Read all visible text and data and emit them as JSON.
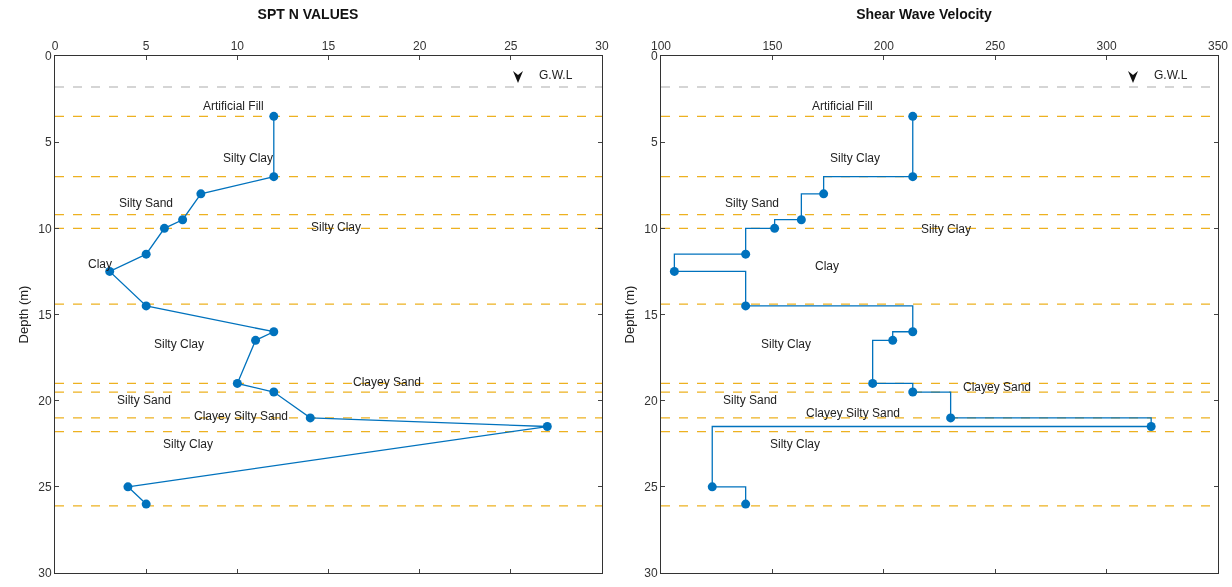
{
  "chart_data": [
    {
      "type": "line",
      "title": "SPT N VALUES",
      "ylabel": "Depth (m)",
      "xlim": [
        0,
        30
      ],
      "xticks": [
        0,
        5,
        10,
        15,
        20,
        25,
        30
      ],
      "ylim": [
        30,
        0
      ],
      "yticks": [
        0,
        5,
        10,
        15,
        20,
        25,
        30
      ],
      "grid": false,
      "marker": "circle",
      "line_style": "solid",
      "series": [
        {
          "color": "#0072bd",
          "x": [
            12,
            12,
            8,
            7,
            6,
            5,
            3,
            5,
            12,
            11,
            10,
            12,
            14,
            27,
            4,
            5
          ],
          "values": [
            3.5,
            7,
            8,
            9.5,
            10,
            11.5,
            12.5,
            14.5,
            16,
            16.5,
            19,
            19.5,
            21,
            21.5,
            25,
            26
          ]
        }
      ],
      "ref_lines": [
        {
          "axis": "y",
          "value": 1.8,
          "label": "G.W.L",
          "color": "#c8c8c8",
          "line_style": "dashed"
        },
        {
          "axis": "y",
          "value": 3.5,
          "color": "#edb120",
          "line_style": "dashed"
        },
        {
          "axis": "y",
          "value": 7,
          "color": "#edb120",
          "line_style": "dashed"
        },
        {
          "axis": "y",
          "value": 9.2,
          "color": "#edb120",
          "line_style": "dashed"
        },
        {
          "axis": "y",
          "value": 10,
          "color": "#edb120",
          "line_style": "dashed"
        },
        {
          "axis": "y",
          "value": 14.4,
          "color": "#edb120",
          "line_style": "dashed"
        },
        {
          "axis": "y",
          "value": 19,
          "color": "#edb120",
          "line_style": "dashed"
        },
        {
          "axis": "y",
          "value": 19.5,
          "color": "#edb120",
          "line_style": "dashed"
        },
        {
          "axis": "y",
          "value": 21,
          "color": "#edb120",
          "line_style": "dashed"
        },
        {
          "axis": "y",
          "value": 21.8,
          "color": "#edb120",
          "line_style": "dashed"
        },
        {
          "axis": "y",
          "value": 26.1,
          "color": "#edb120",
          "line_style": "dashed"
        }
      ],
      "annotations": [
        "Artificial Fill",
        "Silty Clay",
        "Silty Sand",
        "Silty Clay",
        "Clay",
        "Silty Clay",
        "Clayey Sand",
        "Silty Sand",
        "Clayey Silty Sand",
        "Silty Clay"
      ]
    },
    {
      "type": "step",
      "title": "Shear Wave Velocity",
      "ylabel": "Depth (m)",
      "xlim": [
        100,
        350
      ],
      "xticks": [
        100,
        150,
        200,
        250,
        300,
        350
      ],
      "ylim": [
        30,
        0
      ],
      "yticks": [
        0,
        5,
        10,
        15,
        20,
        25,
        30
      ],
      "grid": false,
      "marker": "circle",
      "line_style": "solid",
      "series": [
        {
          "color": "#0072bd",
          "x": [
            213,
            213,
            173,
            163,
            151,
            138,
            106,
            138,
            213,
            204,
            195,
            213,
            230,
            320,
            123,
            138
          ],
          "values": [
            3.5,
            7,
            8,
            9.5,
            10,
            11.5,
            12.5,
            14.5,
            16,
            16.5,
            19,
            19.5,
            21,
            21.5,
            25,
            26
          ]
        }
      ],
      "ref_lines": [
        {
          "axis": "y",
          "value": 1.8,
          "label": "G.W.L",
          "color": "#c8c8c8",
          "line_style": "dashed"
        },
        {
          "axis": "y",
          "value": 3.5,
          "color": "#edb120",
          "line_style": "dashed"
        },
        {
          "axis": "y",
          "value": 7,
          "color": "#edb120",
          "line_style": "dashed"
        },
        {
          "axis": "y",
          "value": 9.2,
          "color": "#edb120",
          "line_style": "dashed"
        },
        {
          "axis": "y",
          "value": 10,
          "color": "#edb120",
          "line_style": "dashed"
        },
        {
          "axis": "y",
          "value": 14.4,
          "color": "#edb120",
          "line_style": "dashed"
        },
        {
          "axis": "y",
          "value": 19,
          "color": "#edb120",
          "line_style": "dashed"
        },
        {
          "axis": "y",
          "value": 19.5,
          "color": "#edb120",
          "line_style": "dashed"
        },
        {
          "axis": "y",
          "value": 21,
          "color": "#edb120",
          "line_style": "dashed"
        },
        {
          "axis": "y",
          "value": 21.8,
          "color": "#edb120",
          "line_style": "dashed"
        },
        {
          "axis": "y",
          "value": 26.1,
          "color": "#edb120",
          "line_style": "dashed"
        }
      ],
      "annotations": [
        "Artificial Fill",
        "Silty Clay",
        "Silty Sand",
        "Silty Clay",
        "Clay",
        "Silty Clay",
        "Clayey Sand",
        "Silty Sand",
        "Clayey Silty Sand",
        "Silty Clay"
      ]
    }
  ]
}
